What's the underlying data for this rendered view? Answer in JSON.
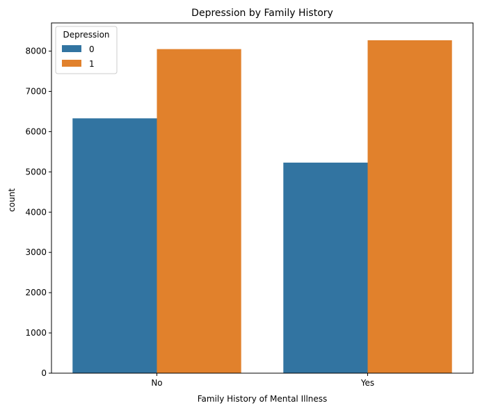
{
  "chart_data": {
    "type": "bar",
    "title": "Depression by Family History",
    "xlabel": "Family History of Mental Illness",
    "ylabel": "count",
    "categories": [
      "No",
      "Yes"
    ],
    "series": [
      {
        "name": "0",
        "values": [
          6330,
          5230
        ],
        "color": "#3274a1"
      },
      {
        "name": "1",
        "values": [
          8050,
          8270
        ],
        "color": "#e1812c"
      }
    ],
    "ylim": [
      0,
      8700
    ],
    "yticks": [
      0,
      1000,
      2000,
      3000,
      4000,
      5000,
      6000,
      7000,
      8000
    ],
    "legend": {
      "title": "Depression",
      "placement": "top-left"
    },
    "grid": false
  }
}
